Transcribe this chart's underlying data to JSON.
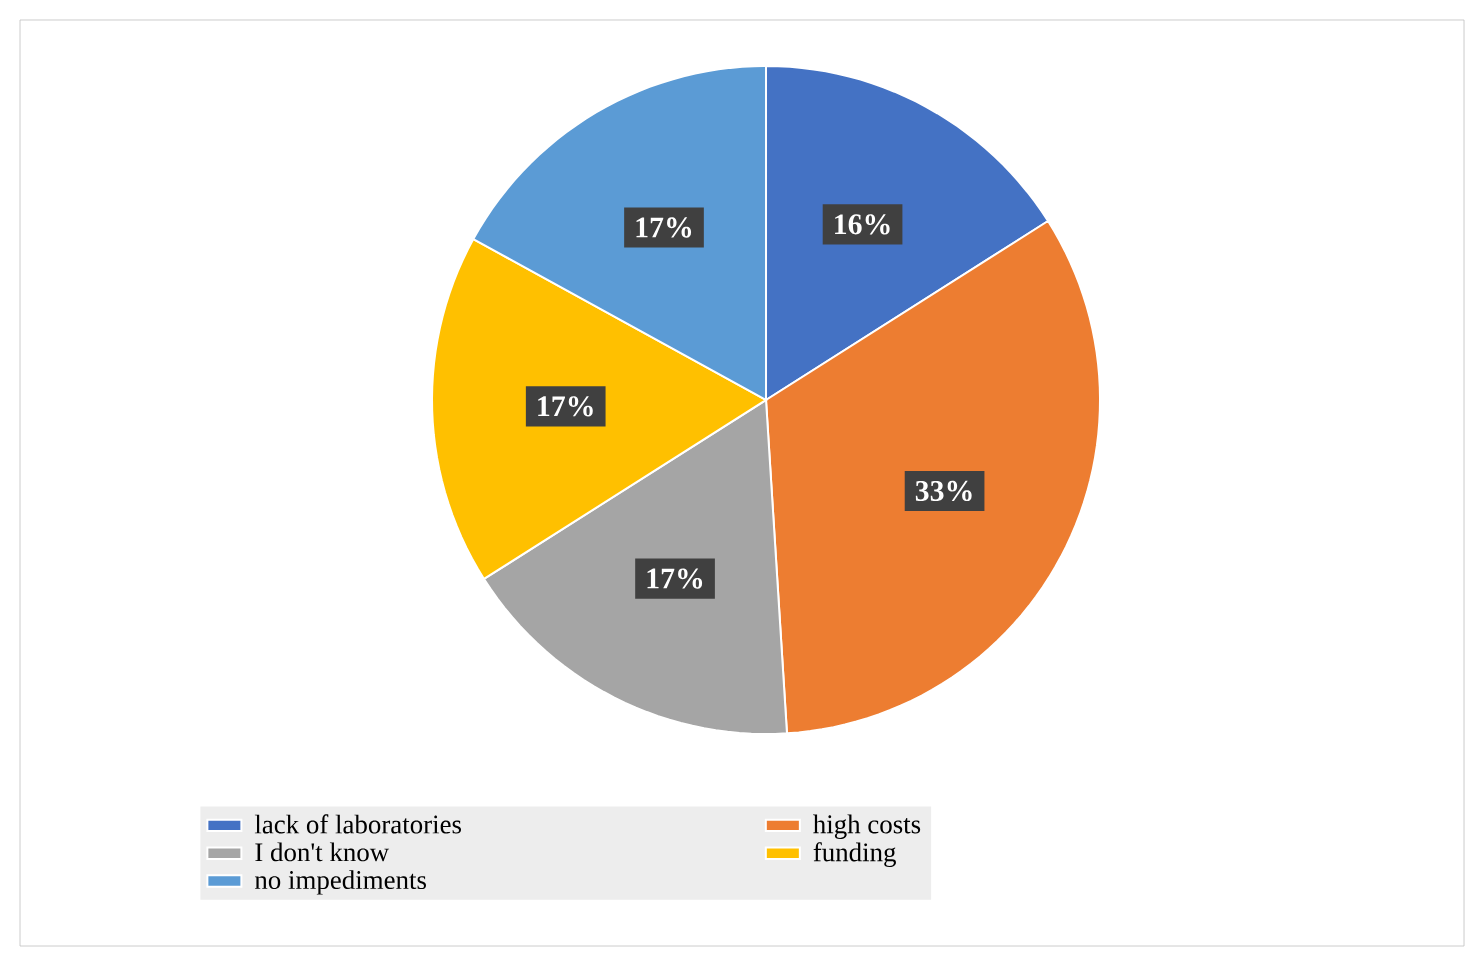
{
  "chart_data": {
    "type": "pie",
    "categories": [
      "lack of laboratories",
      "high costs",
      "I don't know",
      "funding",
      "no impediments"
    ],
    "values": [
      16,
      33,
      17,
      17,
      17
    ],
    "value_labels": [
      "16%",
      "33%",
      "17%",
      "17%",
      "17%"
    ],
    "colors": [
      "#4472c4",
      "#ed7d31",
      "#a5a5a5",
      "#ffc000",
      "#5b9bd5"
    ],
    "legend": "bottom"
  }
}
